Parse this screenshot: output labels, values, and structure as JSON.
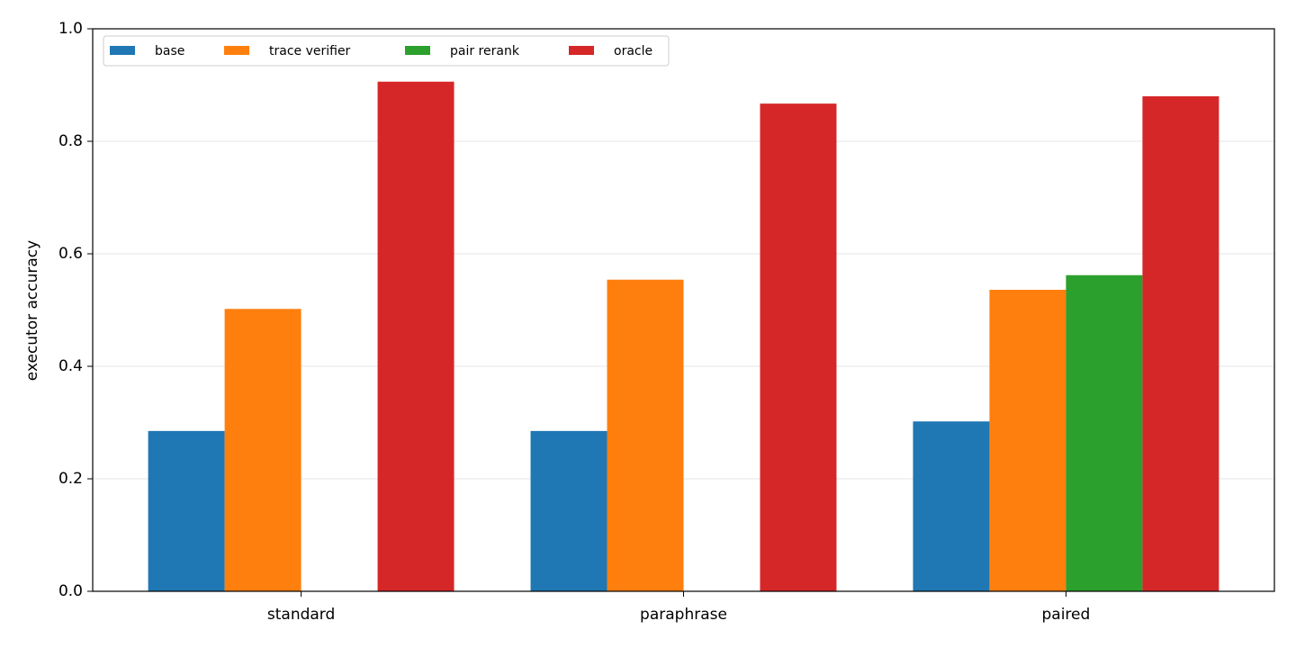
{
  "chart_data": {
    "type": "bar",
    "y_label": "executor accuracy",
    "categories": [
      "standard",
      "paraphrase",
      "paired"
    ],
    "series": [
      {
        "name": "base",
        "color": "#1f77b4",
        "values": [
          0.285,
          0.285,
          0.302
        ]
      },
      {
        "name": "trace verifier",
        "color": "#ff7f0e",
        "values": [
          0.502,
          0.554,
          0.536
        ]
      },
      {
        "name": "pair rerank",
        "color": "#2ca02c",
        "values": [
          null,
          null,
          0.562
        ]
      },
      {
        "name": "oracle",
        "color": "#d62728",
        "values": [
          0.906,
          0.867,
          0.88
        ]
      }
    ],
    "ylim": [
      0,
      1
    ],
    "yticks": [
      {
        "value": 0,
        "label": "0.0"
      },
      0.2,
      0.4,
      0.6,
      0.8,
      {
        "value": 1,
        "label": "1.0"
      }
    ],
    "grid": true,
    "legend": "upper-left"
  }
}
